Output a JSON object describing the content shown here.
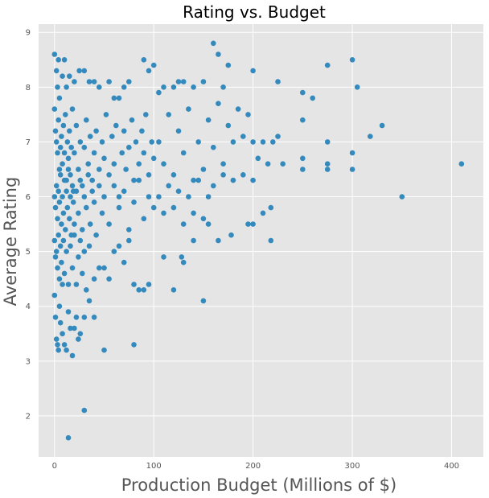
{
  "chart_data": {
    "type": "scatter",
    "title": "Rating vs. Budget",
    "xlabel": "Production Budget (Millions of $)",
    "ylabel": "Average Rating",
    "xlim": [
      -16,
      432
    ],
    "ylim": [
      1.25,
      9.15
    ],
    "xticks": [
      0,
      100,
      200,
      300,
      400
    ],
    "yticks": [
      2,
      3,
      4,
      5,
      6,
      7,
      8,
      9
    ],
    "grid": true,
    "legend": "none",
    "style": {
      "background": "#E5E5E5",
      "marker_color": "#348ABD"
    },
    "series": [
      {
        "points": [
          [
            0,
            8.6
          ],
          [
            2,
            8.3
          ],
          [
            4,
            8.5
          ],
          [
            10,
            8.5
          ],
          [
            3,
            8.0
          ],
          [
            5,
            7.8
          ],
          [
            8,
            8.2
          ],
          [
            12,
            8.0
          ],
          [
            15,
            8.2
          ],
          [
            20,
            8.1
          ],
          [
            25,
            8.3
          ],
          [
            30,
            8.3
          ],
          [
            35,
            8.1
          ],
          [
            40,
            8.1
          ],
          [
            45,
            8.0
          ],
          [
            55,
            8.1
          ],
          [
            60,
            7.8
          ],
          [
            65,
            7.8
          ],
          [
            70,
            8.0
          ],
          [
            75,
            8.1
          ],
          [
            90,
            8.5
          ],
          [
            95,
            8.3
          ],
          [
            100,
            8.4
          ],
          [
            105,
            7.9
          ],
          [
            110,
            8.0
          ],
          [
            120,
            8.0
          ],
          [
            125,
            8.1
          ],
          [
            130,
            8.1
          ],
          [
            140,
            8.0
          ],
          [
            150,
            8.1
          ],
          [
            160,
            8.8
          ],
          [
            165,
            8.6
          ],
          [
            170,
            8.0
          ],
          [
            175,
            8.4
          ],
          [
            200,
            8.3
          ],
          [
            225,
            8.1
          ],
          [
            250,
            7.9
          ],
          [
            260,
            7.8
          ],
          [
            275,
            8.4
          ],
          [
            300,
            8.5
          ],
          [
            305,
            8.0
          ],
          [
            0,
            7.6
          ],
          [
            1,
            7.2
          ],
          [
            2,
            7.0
          ],
          [
            3,
            6.8
          ],
          [
            4,
            7.4
          ],
          [
            5,
            6.5
          ],
          [
            6,
            6.9
          ],
          [
            7,
            7.1
          ],
          [
            8,
            6.6
          ],
          [
            9,
            7.3
          ],
          [
            10,
            6.8
          ],
          [
            11,
            7.5
          ],
          [
            12,
            6.3
          ],
          [
            13,
            7.0
          ],
          [
            14,
            6.7
          ],
          [
            15,
            7.2
          ],
          [
            16,
            6.4
          ],
          [
            17,
            6.9
          ],
          [
            18,
            7.6
          ],
          [
            19,
            6.1
          ],
          [
            20,
            6.8
          ],
          [
            22,
            7.3
          ],
          [
            24,
            6.5
          ],
          [
            26,
            7.0
          ],
          [
            28,
            6.2
          ],
          [
            30,
            6.9
          ],
          [
            32,
            7.4
          ],
          [
            34,
            6.6
          ],
          [
            36,
            7.1
          ],
          [
            38,
            6.3
          ],
          [
            40,
            6.8
          ],
          [
            42,
            7.2
          ],
          [
            45,
            6.5
          ],
          [
            48,
            7.0
          ],
          [
            50,
            6.7
          ],
          [
            52,
            7.5
          ],
          [
            55,
            6.4
          ],
          [
            58,
            7.1
          ],
          [
            60,
            6.6
          ],
          [
            62,
            7.3
          ],
          [
            65,
            6.0
          ],
          [
            68,
            6.8
          ],
          [
            70,
            7.2
          ],
          [
            72,
            6.5
          ],
          [
            75,
            6.9
          ],
          [
            78,
            7.4
          ],
          [
            80,
            6.3
          ],
          [
            82,
            7.0
          ],
          [
            85,
            6.6
          ],
          [
            88,
            7.2
          ],
          [
            90,
            6.8
          ],
          [
            92,
            7.5
          ],
          [
            95,
            6.4
          ],
          [
            98,
            7.0
          ],
          [
            100,
            6.7
          ],
          [
            0,
            6.0
          ],
          [
            1,
            5.8
          ],
          [
            2,
            6.2
          ],
          [
            3,
            5.6
          ],
          [
            4,
            6.1
          ],
          [
            5,
            5.9
          ],
          [
            6,
            6.4
          ],
          [
            7,
            5.5
          ],
          [
            8,
            6.0
          ],
          [
            9,
            5.7
          ],
          [
            10,
            6.3
          ],
          [
            11,
            5.4
          ],
          [
            12,
            6.1
          ],
          [
            13,
            5.8
          ],
          [
            14,
            6.5
          ],
          [
            15,
            5.6
          ],
          [
            16,
            6.0
          ],
          [
            17,
            5.3
          ],
          [
            18,
            6.2
          ],
          [
            19,
            5.9
          ],
          [
            20,
            5.5
          ],
          [
            22,
            6.1
          ],
          [
            24,
            5.7
          ],
          [
            26,
            6.3
          ],
          [
            28,
            5.4
          ],
          [
            30,
            6.0
          ],
          [
            32,
            5.8
          ],
          [
            34,
            6.4
          ],
          [
            36,
            5.5
          ],
          [
            38,
            6.1
          ],
          [
            40,
            5.9
          ],
          [
            42,
            5.3
          ],
          [
            45,
            6.2
          ],
          [
            48,
            5.7
          ],
          [
            50,
            6.0
          ],
          [
            55,
            5.5
          ],
          [
            60,
            6.2
          ],
          [
            65,
            5.8
          ],
          [
            70,
            6.1
          ],
          [
            75,
            5.4
          ],
          [
            80,
            5.9
          ],
          [
            85,
            6.3
          ],
          [
            90,
            5.6
          ],
          [
            95,
            6.0
          ],
          [
            100,
            5.8
          ],
          [
            0,
            5.2
          ],
          [
            1,
            4.9
          ],
          [
            2,
            5.0
          ],
          [
            3,
            4.7
          ],
          [
            4,
            5.3
          ],
          [
            5,
            4.5
          ],
          [
            6,
            5.1
          ],
          [
            7,
            4.8
          ],
          [
            8,
            4.4
          ],
          [
            9,
            5.2
          ],
          [
            10,
            4.6
          ],
          [
            12,
            5.0
          ],
          [
            14,
            4.4
          ],
          [
            16,
            5.1
          ],
          [
            18,
            4.7
          ],
          [
            20,
            5.3
          ],
          [
            22,
            4.4
          ],
          [
            24,
            4.9
          ],
          [
            26,
            5.2
          ],
          [
            28,
            4.6
          ],
          [
            30,
            5.0
          ],
          [
            32,
            4.3
          ],
          [
            35,
            5.1
          ],
          [
            40,
            4.5
          ],
          [
            45,
            4.7
          ],
          [
            50,
            4.7
          ],
          [
            55,
            4.5
          ],
          [
            60,
            5.0
          ],
          [
            65,
            5.1
          ],
          [
            70,
            4.8
          ],
          [
            75,
            5.2
          ],
          [
            80,
            4.4
          ],
          [
            85,
            4.3
          ],
          [
            90,
            4.3
          ],
          [
            95,
            4.4
          ],
          [
            0,
            4.2
          ],
          [
            1,
            3.8
          ],
          [
            2,
            3.4
          ],
          [
            3,
            3.3
          ],
          [
            4,
            3.2
          ],
          [
            5,
            4.0
          ],
          [
            6,
            3.7
          ],
          [
            8,
            3.5
          ],
          [
            10,
            3.3
          ],
          [
            12,
            3.2
          ],
          [
            14,
            3.9
          ],
          [
            16,
            3.6
          ],
          [
            18,
            3.1
          ],
          [
            20,
            3.6
          ],
          [
            22,
            3.8
          ],
          [
            24,
            3.4
          ],
          [
            26,
            3.5
          ],
          [
            30,
            3.8
          ],
          [
            35,
            4.1
          ],
          [
            40,
            3.8
          ],
          [
            50,
            3.2
          ],
          [
            80,
            3.3
          ],
          [
            30,
            2.1
          ],
          [
            14,
            1.6
          ],
          [
            105,
            7.0
          ],
          [
            110,
            6.6
          ],
          [
            115,
            7.5
          ],
          [
            120,
            6.4
          ],
          [
            125,
            7.2
          ],
          [
            130,
            6.8
          ],
          [
            135,
            7.6
          ],
          [
            140,
            6.3
          ],
          [
            145,
            7.0
          ],
          [
            150,
            6.5
          ],
          [
            155,
            7.4
          ],
          [
            160,
            6.9
          ],
          [
            165,
            7.7
          ],
          [
            170,
            6.6
          ],
          [
            175,
            7.3
          ],
          [
            180,
            7.0
          ],
          [
            185,
            7.6
          ],
          [
            190,
            7.1
          ],
          [
            195,
            7.5
          ],
          [
            200,
            7.0
          ],
          [
            105,
            6.0
          ],
          [
            110,
            5.7
          ],
          [
            115,
            6.2
          ],
          [
            120,
            5.8
          ],
          [
            125,
            6.1
          ],
          [
            130,
            5.5
          ],
          [
            135,
            6.0
          ],
          [
            140,
            5.7
          ],
          [
            145,
            6.3
          ],
          [
            150,
            5.6
          ],
          [
            155,
            6.0
          ],
          [
            160,
            6.2
          ],
          [
            170,
            6.4
          ],
          [
            180,
            6.3
          ],
          [
            190,
            6.4
          ],
          [
            200,
            6.3
          ],
          [
            110,
            4.9
          ],
          [
            120,
            4.3
          ],
          [
            128,
            4.9
          ],
          [
            130,
            4.8
          ],
          [
            150,
            4.1
          ],
          [
            140,
            5.2
          ],
          [
            155,
            5.5
          ],
          [
            165,
            5.2
          ],
          [
            178,
            5.3
          ],
          [
            195,
            5.5
          ],
          [
            200,
            5.5
          ],
          [
            210,
            5.7
          ],
          [
            218,
            5.8
          ],
          [
            218,
            5.2
          ],
          [
            205,
            6.7
          ],
          [
            210,
            7.0
          ],
          [
            215,
            6.6
          ],
          [
            220,
            7.0
          ],
          [
            225,
            7.1
          ],
          [
            230,
            6.6
          ],
          [
            250,
            7.4
          ],
          [
            250,
            6.7
          ],
          [
            250,
            6.5
          ],
          [
            275,
            7.0
          ],
          [
            275,
            6.6
          ],
          [
            275,
            6.5
          ],
          [
            300,
            6.8
          ],
          [
            300,
            6.5
          ],
          [
            318,
            7.1
          ],
          [
            330,
            7.3
          ],
          [
            350,
            6.0
          ],
          [
            410,
            6.6
          ]
        ]
      }
    ]
  }
}
